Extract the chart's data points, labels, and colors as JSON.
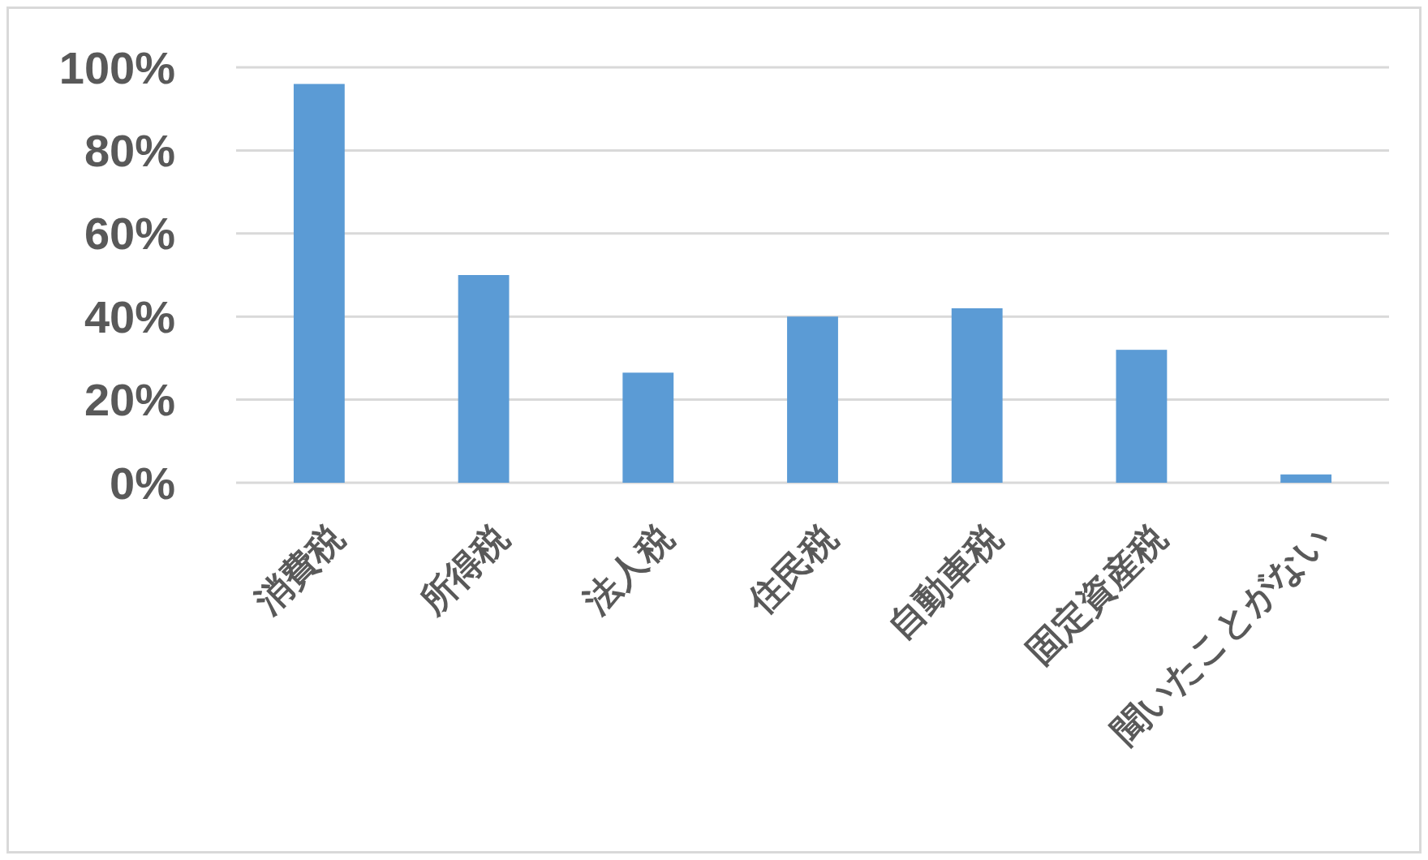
{
  "chart_data": {
    "type": "bar",
    "categories": [
      "消費税",
      "所得税",
      "法人税",
      "住民税",
      "自動車税",
      "固定資産税",
      "聞いたことがない"
    ],
    "values": [
      96,
      50,
      26.5,
      40,
      42,
      32,
      2
    ],
    "color": "#5b9bd5",
    "ylim": [
      0,
      100
    ],
    "yticks": [
      {
        "value": 0,
        "label": "0%"
      },
      {
        "value": 20,
        "label": "20%"
      },
      {
        "value": 40,
        "label": "40%"
      },
      {
        "value": 60,
        "label": "60%"
      },
      {
        "value": 80,
        "label": "80%"
      },
      {
        "value": 100,
        "label": "100%"
      }
    ],
    "grid": "y"
  }
}
